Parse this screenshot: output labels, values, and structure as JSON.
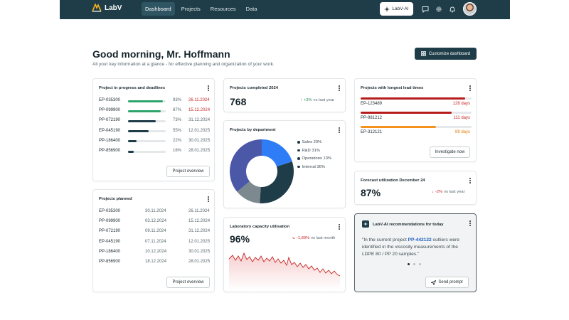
{
  "nav": {
    "logo_text": "LabV",
    "links": [
      {
        "label": "Dashboard",
        "active": true
      },
      {
        "label": "Projects",
        "active": false
      },
      {
        "label": "Resources",
        "active": false
      },
      {
        "label": "Data",
        "active": false
      }
    ],
    "ai_button_label": "LabV-AI",
    "icons": [
      "chat-icon",
      "gear-icon",
      "bell-icon"
    ]
  },
  "header": {
    "greeting": "Good morning, Mr. Hoffmann",
    "subline": "All your key information at a glance - for effective planning and organization of your work.",
    "customize_label": "Customize dashboard"
  },
  "progress_card": {
    "title": "Project in progress and deadlines",
    "rows": [
      {
        "id": "EP-035300",
        "percent": 93,
        "percent_label": "93%",
        "date": "26.11.2024",
        "overdue": true,
        "color": "#2ea36b"
      },
      {
        "id": "PP-099900",
        "percent": 87,
        "percent_label": "87%",
        "date": "15.12.2024",
        "overdue": true,
        "color": "#2ea36b"
      },
      {
        "id": "PP-072190",
        "percent": 73,
        "percent_label": "73%",
        "date": "31.12.2024",
        "overdue": false,
        "color": "#1f3d48"
      },
      {
        "id": "EP-045190",
        "percent": 55,
        "percent_label": "55%",
        "date": "12.01.2025",
        "overdue": false,
        "color": "#1f3d48"
      },
      {
        "id": "PP-186400",
        "percent": 22,
        "percent_label": "22%",
        "date": "30.01.2025",
        "overdue": false,
        "color": "#1f3d48"
      },
      {
        "id": "PP-856900",
        "percent": 16,
        "percent_label": "16%",
        "date": "28.01.2025",
        "overdue": false,
        "color": "#1f3d48"
      }
    ],
    "button_label": "Project overview"
  },
  "planned_card": {
    "title": "Projects planned",
    "rows": [
      {
        "id": "EP-035300",
        "start": "30.11.2024",
        "end": "26.11.2024"
      },
      {
        "id": "PP-099900",
        "start": "03.12.2024",
        "end": "15.12.2024"
      },
      {
        "id": "PP-072190",
        "start": "09.11.2024",
        "end": "31.12.2024"
      },
      {
        "id": "EP-045190",
        "start": "07.11.2024",
        "end": "12.01.2025"
      },
      {
        "id": "PP-186400",
        "start": "10.12.2024",
        "end": "30.01.2025"
      },
      {
        "id": "PP-856900",
        "start": "18.12.2024",
        "end": "28.01.2025"
      }
    ],
    "button_label": "Project overview"
  },
  "completed_card": {
    "title": "Projects completed 2024",
    "value": "768",
    "trend": "+3%",
    "trend_suffix": "vs last year"
  },
  "department_card": {
    "title": "Projects by department",
    "legend": [
      {
        "label": "Sales 20%",
        "value": 20,
        "color": "#2f7df6"
      },
      {
        "label": "R&D 31%",
        "value": 31,
        "color": "#1f3d48"
      },
      {
        "label": "Operations 13%",
        "value": 13,
        "color": "#7c8a90"
      },
      {
        "label": "Internal 36%",
        "value": 36,
        "color": "#4b58a8"
      }
    ]
  },
  "capacity_card": {
    "title": "Laboratory capacity utilisation",
    "value": "96%",
    "trend": "-1,89%",
    "trend_suffix": "vs last month"
  },
  "lead_card": {
    "title": "Projects with longest lead times",
    "rows": [
      {
        "id": "EP-123489",
        "fraction": 0.94,
        "label": "128 days",
        "color": "#b71c1c",
        "label_color": "#c62828"
      },
      {
        "id": "PP-981212",
        "fraction": 0.82,
        "label": "111 days",
        "color": "#b71c1c",
        "label_color": "#c62828"
      },
      {
        "id": "EP-312121",
        "fraction": 0.68,
        "label": "89 days",
        "color": "#f5921e",
        "label_color": "#e07b0a"
      }
    ],
    "button_label": "Investigate now"
  },
  "forecast_card": {
    "title": "Forecast utilization December 24",
    "value": "87%",
    "trend": "-2%",
    "trend_suffix": "vs last year"
  },
  "ai_card": {
    "title": "LabV-AI recommendations for today",
    "quote_before": "\"In the current project ",
    "quote_highlight": "PP-442122",
    "quote_after": " outliers were identified in the viscosity measurements of the LDPE 80 / PP 20 samples.\"",
    "button_label": "Send prompt"
  }
}
